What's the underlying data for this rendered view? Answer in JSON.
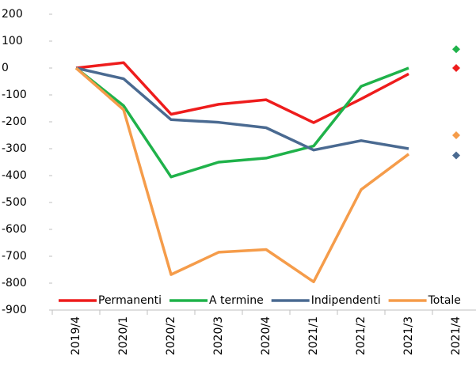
{
  "chart_data": {
    "type": "line",
    "categories": [
      "2019/4",
      "2020/1",
      "2020/2",
      "2020/3",
      "2020/4",
      "2021/1",
      "2021/2",
      "2021/3",
      "2021/4"
    ],
    "series": [
      {
        "name": "Permanenti",
        "color": "#ee1c1c",
        "values": [
          0,
          20,
          -172,
          -135,
          -118,
          -203,
          -115,
          -22,
          null
        ],
        "markers": [
          null,
          null,
          null,
          null,
          null,
          null,
          null,
          null,
          0
        ]
      },
      {
        "name": "A termine",
        "color": "#1fb24a",
        "values": [
          0,
          -140,
          -405,
          -350,
          -335,
          -290,
          -68,
          0,
          null
        ],
        "markers": [
          null,
          null,
          null,
          null,
          null,
          null,
          null,
          null,
          70
        ]
      },
      {
        "name": "Indipendenti",
        "color": "#4a6a91",
        "values": [
          0,
          -40,
          -192,
          -202,
          -222,
          -305,
          -270,
          -300,
          null
        ],
        "markers": [
          null,
          null,
          null,
          null,
          null,
          null,
          null,
          null,
          -325
        ]
      },
      {
        "name": "Totale",
        "color": "#f59c4a",
        "values": [
          0,
          -155,
          -768,
          -685,
          -675,
          -795,
          -452,
          -320,
          null
        ],
        "markers": [
          null,
          null,
          null,
          null,
          null,
          null,
          null,
          null,
          -250
        ]
      }
    ],
    "ylim": [
      -900,
      200
    ],
    "yticks": [
      -900,
      -800,
      -700,
      -600,
      -500,
      -400,
      -300,
      -200,
      -100,
      0,
      100,
      200
    ],
    "legend": "bottom"
  }
}
